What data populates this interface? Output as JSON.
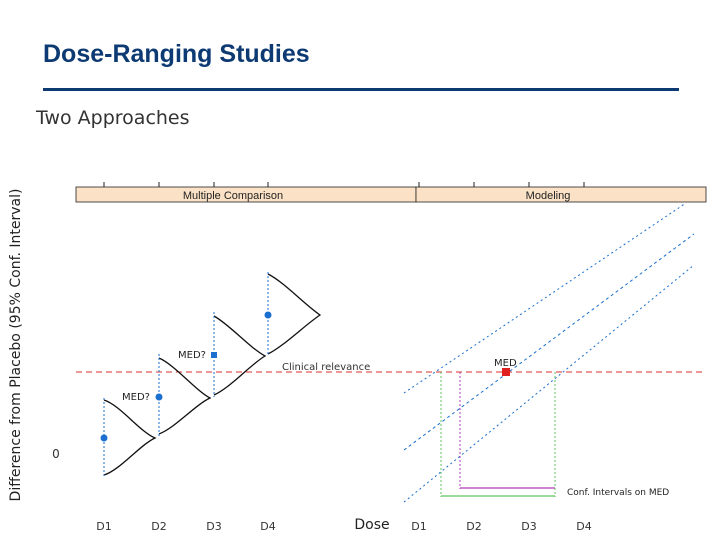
{
  "slide": {
    "title": "Dose-Ranging Studies",
    "subtitle": "Two Approaches"
  },
  "colors": {
    "title": "#0d3a73",
    "strip": "#fbe2c6",
    "dose_blue": "#1a6fcf",
    "relevance_red": "#d9302a",
    "ci_green": "#5fc45f",
    "ci_magenta": "#b23bb8",
    "med_point": "#e02020"
  },
  "chart_data": {
    "type": "scatter",
    "ylabel": "Difference from Placebo (95% Conf. Interval)",
    "xlabel": "Dose",
    "y_ticks": [
      "0"
    ],
    "panels": [
      {
        "name": "Multiple Comparison",
        "categories": [
          "D1",
          "D2",
          "D3",
          "D4"
        ],
        "points": [
          {
            "dose": "D1",
            "y": 0.1
          },
          {
            "dose": "D2",
            "y": 0.6
          },
          {
            "dose": "D3",
            "y": 1.3
          },
          {
            "dose": "D4",
            "y": 1.9
          }
        ],
        "labels": [
          {
            "text": "MED?",
            "dose": "D2"
          },
          {
            "text": "MED?",
            "dose": "D3"
          }
        ],
        "annotation": "Clinical relevance"
      },
      {
        "name": "Modeling",
        "categories": [
          "D1",
          "D2",
          "D3",
          "D4"
        ],
        "fit": {
          "start": 0.0,
          "end": 2.3
        },
        "med_label": "MED",
        "med_dose": 2.1,
        "ci_label": "Conf. Intervals on MED"
      }
    ],
    "clinical_relevance": 1.0,
    "ylim": [
      -0.5,
      2.7
    ]
  }
}
